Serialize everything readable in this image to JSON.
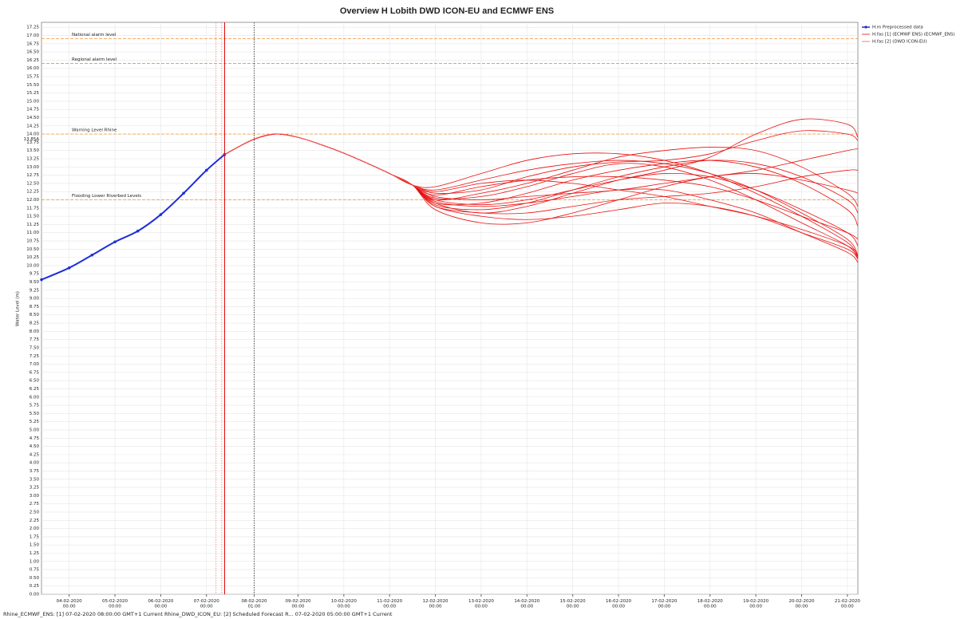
{
  "chart_data": {
    "type": "line",
    "title": "Overview H Lobith DWD ICON-EU and ECMWF ENS",
    "ylabel": "Water Level (m)",
    "footer": "Rhine_ECMWF_ENS: [1] 07-02-2020 08:00:00 GMT+1 Current Rhine_DWD_ICON_EU: [2] Scheduled Forecast R... 07-02-2020 05:00:00 GMT+1 Current",
    "grid": true,
    "legend": "top-right-outside",
    "xlim": [
      "2020-02-03T09:30",
      "2020-02-21T05:30"
    ],
    "ylim": [
      0,
      17.4
    ],
    "xticks": [
      {
        "value": "2020-02-04T00:00",
        "label": "04-02-2020 00:00"
      },
      {
        "value": "2020-02-05T00:00",
        "label": "05-02-2020 00:00"
      },
      {
        "value": "2020-02-06T00:00",
        "label": "06-02-2020 00:00"
      },
      {
        "value": "2020-02-07T00:00",
        "label": "07-02-2020 00:00"
      },
      {
        "value": "2020-02-08T01:00",
        "label": "08-02-2020 01:00",
        "color": "#2a3cff"
      },
      {
        "value": "2020-02-09T00:00",
        "label": "09-02-2020 00:00"
      },
      {
        "value": "2020-02-10T00:00",
        "label": "10-02-2020 00:00"
      },
      {
        "value": "2020-02-11T00:00",
        "label": "11-02-2020 00:00"
      },
      {
        "value": "2020-02-12T00:00",
        "label": "12-02-2020 00:00"
      },
      {
        "value": "2020-02-13T00:00",
        "label": "13-02-2020 00:00"
      },
      {
        "value": "2020-02-14T00:00",
        "label": "14-02-2020 00:00"
      },
      {
        "value": "2020-02-15T00:00",
        "label": "15-02-2020 00:00"
      },
      {
        "value": "2020-02-16T00:00",
        "label": "16-02-2020 00:00"
      },
      {
        "value": "2020-02-17T00:00",
        "label": "17-02-2020 00:00"
      },
      {
        "value": "2020-02-18T00:00",
        "label": "18-02-2020 00:00"
      },
      {
        "value": "2020-02-19T00:00",
        "label": "19-02-2020 00:00"
      },
      {
        "value": "2020-02-20T00:00",
        "label": "20-02-2020 00:00"
      },
      {
        "value": "2020-02-21T00:00",
        "label": "21-02-2020 00:00"
      }
    ],
    "yticks": [
      {
        "value": 0,
        "label": "0.00"
      },
      {
        "value": 0.25,
        "label": "0.25"
      },
      {
        "value": 0.5,
        "label": "0.50"
      },
      {
        "value": 0.75,
        "label": "0.75"
      },
      {
        "value": 1,
        "label": "1.00"
      },
      {
        "value": 1.25,
        "label": "1.25"
      },
      {
        "value": 1.5,
        "label": "1.50"
      },
      {
        "value": 1.75,
        "label": "1.75"
      },
      {
        "value": 2,
        "label": "2.00"
      },
      {
        "value": 2.25,
        "label": "2.25"
      },
      {
        "value": 2.5,
        "label": "2.50"
      },
      {
        "value": 2.75,
        "label": "2.75"
      },
      {
        "value": 3,
        "label": "3.00"
      },
      {
        "value": 3.25,
        "label": "3.25"
      },
      {
        "value": 3.5,
        "label": "3.50"
      },
      {
        "value": 3.75,
        "label": "3.75"
      },
      {
        "value": 4,
        "label": "4.00"
      },
      {
        "value": 4.25,
        "label": "4.25"
      },
      {
        "value": 4.5,
        "label": "4.50"
      },
      {
        "value": 4.75,
        "label": "4.75"
      },
      {
        "value": 5,
        "label": "5.00"
      },
      {
        "value": 5.25,
        "label": "5.25"
      },
      {
        "value": 5.5,
        "label": "5.50"
      },
      {
        "value": 5.75,
        "label": "5.75"
      },
      {
        "value": 6,
        "label": "6.00"
      },
      {
        "value": 6.25,
        "label": "6.25"
      },
      {
        "value": 6.5,
        "label": "6.50"
      },
      {
        "value": 6.75,
        "label": "6.75"
      },
      {
        "value": 7,
        "label": "7.00"
      },
      {
        "value": 7.25,
        "label": "7.25"
      },
      {
        "value": 7.5,
        "label": "7.50"
      },
      {
        "value": 7.75,
        "label": "7.75"
      },
      {
        "value": 8,
        "label": "8.00"
      },
      {
        "value": 8.25,
        "label": "8.25"
      },
      {
        "value": 8.5,
        "label": "8.50"
      },
      {
        "value": 8.75,
        "label": "8.75"
      },
      {
        "value": 9,
        "label": "9.00"
      },
      {
        "value": 9.25,
        "label": "9.25"
      },
      {
        "value": 9.5,
        "label": "9.50"
      },
      {
        "value": 9.75,
        "label": "9.75"
      },
      {
        "value": 10,
        "label": "10.00"
      },
      {
        "value": 10.25,
        "label": "10.25"
      },
      {
        "value": 10.5,
        "label": "10.50"
      },
      {
        "value": 10.75,
        "label": "10.75"
      },
      {
        "value": 11,
        "label": "11.00"
      },
      {
        "value": 11.25,
        "label": "11.25"
      },
      {
        "value": 11.5,
        "label": "11.50"
      },
      {
        "value": 11.75,
        "label": "11.75"
      },
      {
        "value": 12,
        "label": "12.00"
      },
      {
        "value": 12.25,
        "label": "12.25"
      },
      {
        "value": 12.5,
        "label": "12.50"
      },
      {
        "value": 12.75,
        "label": "12.75"
      },
      {
        "value": 13,
        "label": "13.00"
      },
      {
        "value": 13.25,
        "label": "13.25"
      },
      {
        "value": 13.5,
        "label": "13.50"
      },
      {
        "value": 13.75,
        "label": "13.75"
      },
      {
        "value": 14,
        "label": "14.00"
      },
      {
        "value": 14.25,
        "label": "14.25"
      },
      {
        "value": 14.5,
        "label": "14.50"
      },
      {
        "value": 14.75,
        "label": "14.75"
      },
      {
        "value": 15,
        "label": "15.00"
      },
      {
        "value": 15.25,
        "label": "15.25"
      },
      {
        "value": 15.5,
        "label": "15.50"
      },
      {
        "value": 15.75,
        "label": "15.75"
      },
      {
        "value": 16,
        "label": "16.00"
      },
      {
        "value": 16.25,
        "label": "16.25"
      },
      {
        "value": 16.5,
        "label": "16.50"
      },
      {
        "value": 16.75,
        "label": "16.75"
      },
      {
        "value": 17,
        "label": "17.00"
      },
      {
        "value": 17.25,
        "label": "17.25"
      }
    ],
    "y_marker": {
      "value": 13.85,
      "label": "13.85A",
      "color": "#e00000"
    },
    "thresholds": [
      {
        "name": "National alarm level",
        "value": 16.9,
        "color": "#f0a050"
      },
      {
        "name": "Regional alarm level",
        "value": 16.15,
        "color": "#f0a050"
      },
      {
        "name": "Warning Level Rhine",
        "value": 14.0,
        "color": "#f0a050"
      },
      {
        "name": "Flooding Lower Riverbed Levels",
        "value": 12.0,
        "color": "#f0a050"
      }
    ],
    "vlines": [
      {
        "x": "2020-02-07T05:00",
        "color": "#f08080",
        "style": "dotted"
      },
      {
        "x": "2020-02-07T08:00",
        "color": "#f08080",
        "style": "dotted"
      },
      {
        "x": "2020-02-07T09:30",
        "color": "#e00000",
        "style": "solid"
      },
      {
        "x": "2020-02-08T01:00",
        "color": "#333333",
        "style": "dotted"
      }
    ],
    "series": [
      {
        "name": "H.m Preprocessed data",
        "color": "#1f2ed8",
        "markers": true,
        "x": [
          "2020-02-03T09:30",
          "2020-02-04T00:00",
          "2020-02-04T12:00",
          "2020-02-05T00:00",
          "2020-02-05T12:00",
          "2020-02-06T00:00",
          "2020-02-06T12:00",
          "2020-02-07T00:00",
          "2020-02-07T09:30"
        ],
        "values": [
          9.57,
          9.93,
          10.32,
          10.72,
          11.05,
          11.55,
          12.2,
          12.9,
          13.38
        ]
      },
      {
        "name": "H.fas [1] (ECMWF ENS) (ECMWF_ENS)",
        "color": "#e81010",
        "x": [
          "2020-02-07T09:30",
          "2020-02-08T00:00",
          "2020-02-08T12:00",
          "2020-02-09T00:00",
          "2020-02-09T12:00",
          "2020-02-10T00:00",
          "2020-02-10T12:00",
          "2020-02-11T00:00",
          "2020-02-11T12:00",
          "2020-02-12T00:00",
          "2020-02-13T00:00",
          "2020-02-14T00:00",
          "2020-02-15T00:00",
          "2020-02-16T00:00",
          "2020-02-17T00:00",
          "2020-02-18T00:00",
          "2020-02-19T00:00",
          "2020-02-20T00:00",
          "2020-02-21T00:00",
          "2020-02-21T05:30"
        ],
        "members": [
          [
            13.38,
            13.82,
            14.0,
            13.9,
            13.68,
            13.42,
            13.12,
            12.8,
            12.45,
            12.0,
            11.85,
            12.0,
            12.3,
            12.6,
            12.8,
            12.7,
            12.3,
            11.7,
            11.0,
            10.6
          ],
          [
            13.38,
            13.82,
            14.0,
            13.9,
            13.68,
            13.42,
            13.12,
            12.8,
            12.45,
            12.2,
            12.3,
            12.7,
            13.0,
            13.15,
            13.2,
            13.4,
            13.8,
            14.1,
            14.0,
            13.8
          ],
          [
            13.38,
            13.82,
            14.0,
            13.9,
            13.68,
            13.42,
            13.12,
            12.8,
            12.45,
            11.9,
            11.6,
            11.8,
            12.2,
            12.6,
            12.9,
            13.3,
            14.0,
            14.45,
            14.3,
            13.9
          ],
          [
            13.38,
            13.82,
            14.0,
            13.9,
            13.68,
            13.42,
            13.12,
            12.8,
            12.45,
            12.1,
            12.0,
            12.1,
            12.2,
            12.3,
            12.5,
            12.7,
            12.9,
            13.2,
            13.5,
            13.55
          ],
          [
            13.38,
            13.82,
            14.0,
            13.9,
            13.68,
            13.42,
            13.12,
            12.8,
            12.45,
            11.8,
            11.5,
            11.4,
            11.5,
            11.7,
            11.9,
            11.8,
            11.5,
            11.0,
            10.5,
            10.2
          ],
          [
            13.38,
            13.82,
            14.0,
            13.9,
            13.68,
            13.42,
            13.12,
            12.8,
            12.45,
            12.3,
            12.6,
            12.9,
            13.1,
            13.2,
            13.1,
            12.8,
            12.3,
            11.6,
            10.8,
            10.3
          ],
          [
            13.38,
            13.82,
            14.0,
            13.9,
            13.68,
            13.42,
            13.12,
            12.8,
            12.45,
            11.95,
            11.8,
            11.9,
            12.1,
            12.3,
            12.3,
            12.0,
            11.6,
            11.0,
            10.4,
            10.1
          ],
          [
            13.38,
            13.82,
            14.0,
            13.9,
            13.68,
            13.42,
            13.12,
            12.8,
            12.45,
            12.4,
            12.8,
            13.2,
            13.4,
            13.4,
            13.2,
            12.8,
            12.2,
            11.5,
            10.7,
            10.25
          ],
          [
            13.38,
            13.82,
            14.0,
            13.9,
            13.68,
            13.42,
            13.12,
            12.8,
            12.45,
            11.7,
            11.3,
            11.3,
            11.6,
            12.0,
            12.4,
            12.7,
            12.8,
            12.6,
            12.3,
            12.2
          ],
          [
            13.38,
            13.82,
            14.0,
            13.9,
            13.68,
            13.42,
            13.12,
            12.8,
            12.45,
            12.05,
            12.1,
            12.4,
            12.8,
            13.1,
            13.0,
            12.6,
            12.0,
            11.3,
            10.6,
            10.2
          ],
          [
            13.38,
            13.82,
            14.0,
            13.9,
            13.68,
            13.42,
            13.12,
            12.8,
            12.45,
            11.85,
            11.7,
            11.9,
            12.3,
            12.7,
            13.0,
            13.2,
            13.1,
            12.7,
            12.0,
            11.6
          ],
          [
            13.38,
            13.82,
            14.0,
            13.9,
            13.68,
            13.42,
            13.12,
            12.8,
            12.45,
            12.15,
            12.4,
            12.6,
            12.7,
            12.7,
            12.6,
            12.4,
            12.0,
            11.5,
            11.0,
            10.8
          ],
          [
            13.38,
            13.82,
            14.0,
            13.9,
            13.68,
            13.42,
            13.12,
            12.8,
            12.45,
            11.8,
            11.6,
            11.6,
            11.8,
            12.0,
            12.1,
            12.2,
            12.4,
            12.7,
            12.9,
            12.9
          ],
          [
            13.38,
            13.82,
            14.0,
            13.9,
            13.68,
            13.42,
            13.12,
            12.8,
            12.45,
            12.25,
            12.5,
            12.6,
            12.5,
            12.3,
            12.1,
            11.8,
            11.5,
            11.1,
            10.6,
            10.3
          ],
          [
            13.38,
            13.82,
            14.0,
            13.9,
            13.68,
            13.42,
            13.12,
            12.8,
            12.45,
            11.9,
            11.9,
            12.2,
            12.6,
            12.9,
            13.1,
            13.2,
            13.0,
            12.5,
            11.7,
            11.2
          ],
          [
            13.38,
            13.82,
            14.0,
            13.9,
            13.68,
            13.42,
            13.12,
            12.8,
            12.45,
            12.0,
            12.2,
            12.5,
            12.9,
            13.3,
            13.5,
            13.6,
            13.5,
            13.0,
            12.2,
            11.8
          ]
        ]
      },
      {
        "name": "H.fas [2] (DWD ICON-EU)",
        "color": "#f06060",
        "x": [
          "2020-02-07T09:30",
          "2020-02-08T00:00",
          "2020-02-08T12:00",
          "2020-02-09T00:00",
          "2020-02-09T12:00",
          "2020-02-10T00:00",
          "2020-02-10T12:00",
          "2020-02-11T00:00",
          "2020-02-11T12:00",
          "2020-02-12T00:00"
        ],
        "values": [
          13.38,
          13.83,
          14.01,
          13.9,
          13.68,
          13.42,
          13.12,
          12.8,
          12.46,
          12.05
        ]
      }
    ]
  }
}
